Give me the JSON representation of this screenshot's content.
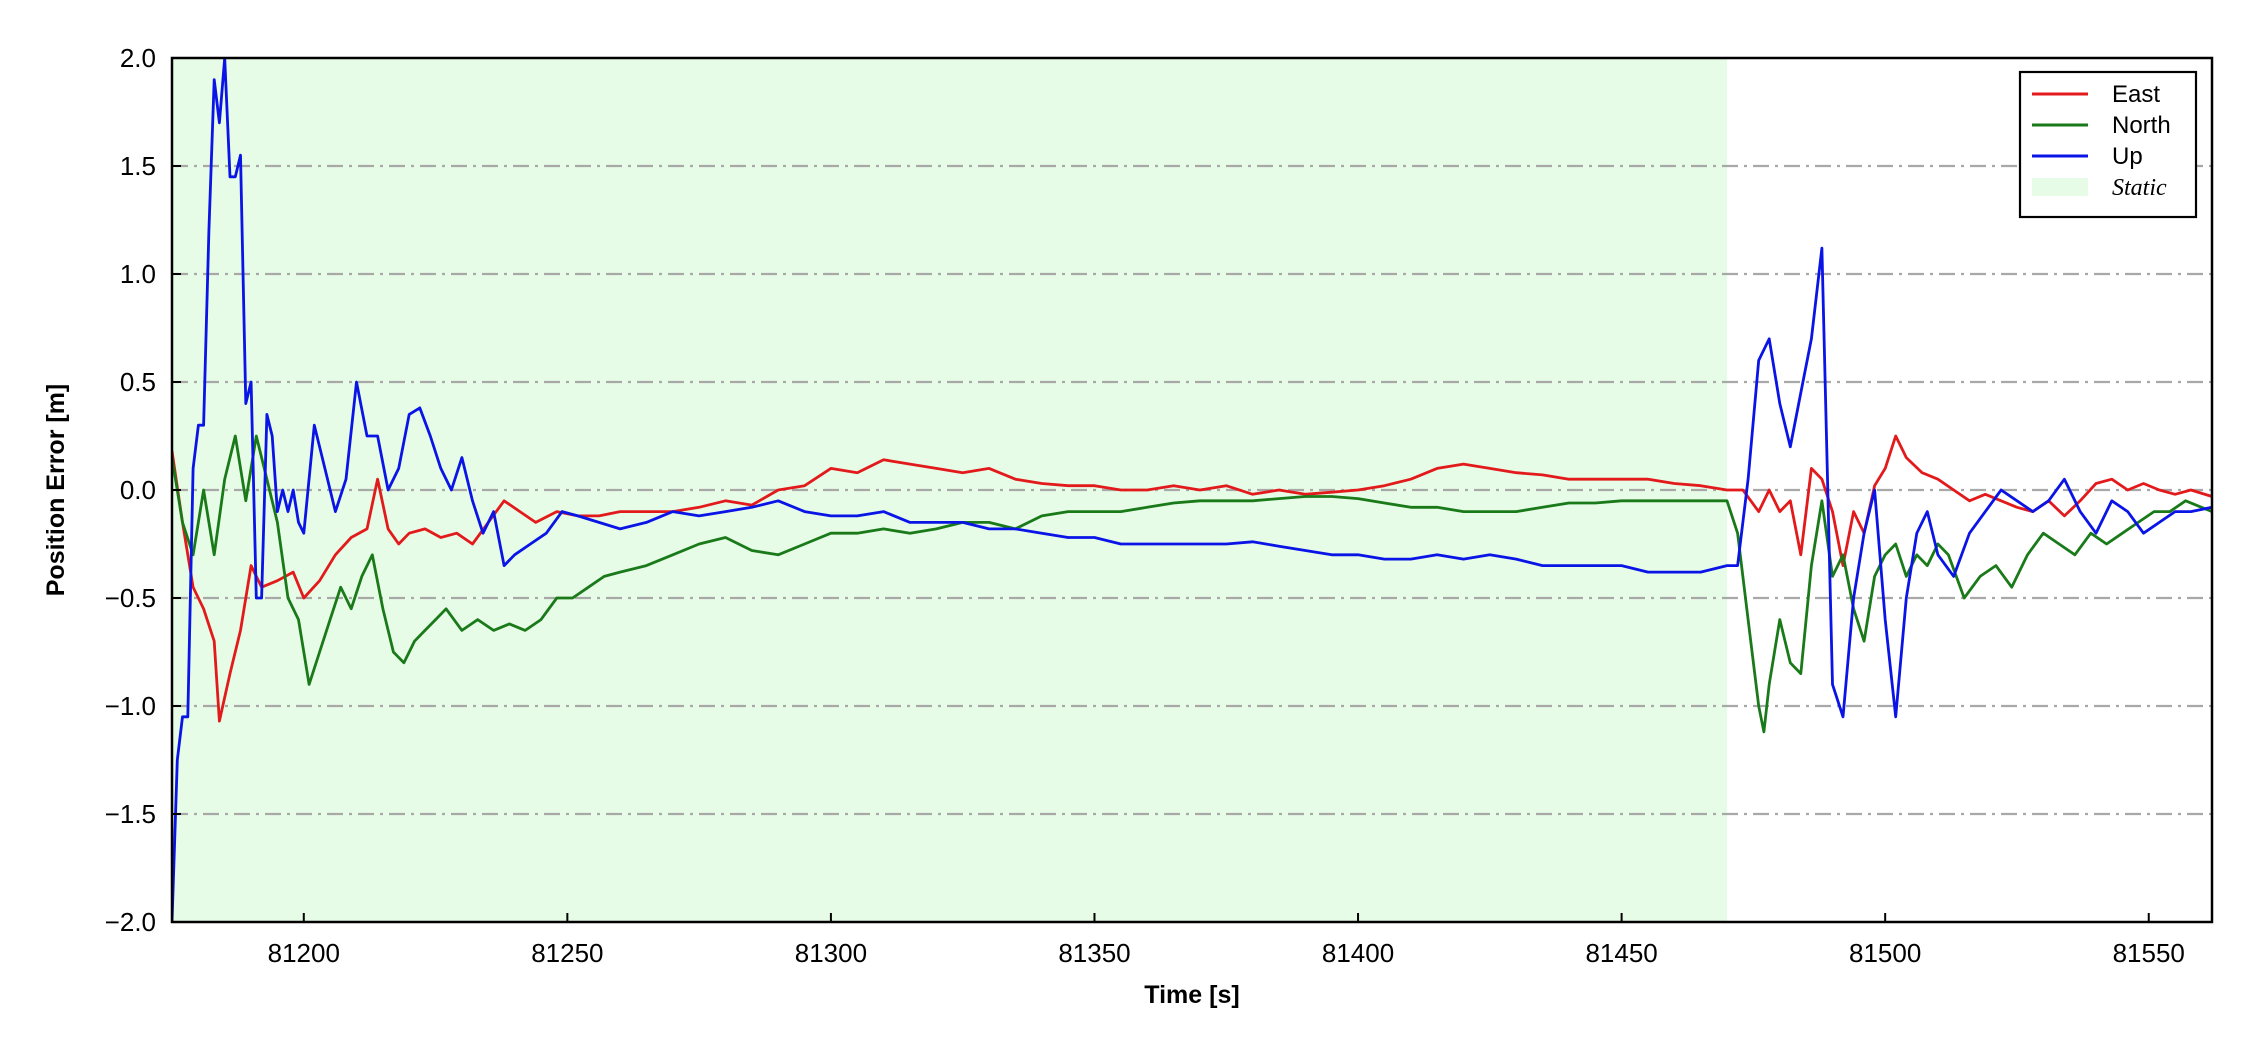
{
  "chart_data": {
    "type": "line",
    "title": "",
    "xlabel": "Time [s]",
    "ylabel": "Position Error [m]",
    "xlim": [
      81175,
      81562
    ],
    "ylim": [
      -2.0,
      2.0
    ],
    "xticks": [
      81200,
      81250,
      81300,
      81350,
      81400,
      81450,
      81500,
      81550
    ],
    "xtick_labels": [
      "81200",
      "81250",
      "81300",
      "81350",
      "81400",
      "81450",
      "81500",
      "81550"
    ],
    "yticks": [
      -2.0,
      -1.5,
      -1.0,
      -0.5,
      0.0,
      0.5,
      1.0,
      1.5,
      2.0
    ],
    "ytick_labels": [
      "−2.0",
      "−1.5",
      "−1.0",
      "−0.5",
      "0.0",
      "0.5",
      "1.0",
      "1.5",
      "2.0"
    ],
    "grid": "horizontal dash-dot",
    "legend_position": "top-right",
    "shaded_region": {
      "label": "Static",
      "x_start": 81175,
      "x_end": 81470,
      "color": "#e6fce6"
    },
    "series": [
      {
        "name": "East",
        "color": "#e31a1c",
        "x": [
          81175,
          81177,
          81179,
          81181,
          81183,
          81184,
          81186,
          81188,
          81190,
          81192,
          81195,
          81198,
          81200,
          81203,
          81206,
          81209,
          81212,
          81214,
          81216,
          81218,
          81220,
          81223,
          81226,
          81229,
          81232,
          81235,
          81238,
          81241,
          81244,
          81248,
          81252,
          81256,
          81260,
          81265,
          81270,
          81275,
          81280,
          81285,
          81290,
          81295,
          81300,
          81305,
          81310,
          81315,
          81320,
          81325,
          81330,
          81335,
          81340,
          81345,
          81350,
          81355,
          81360,
          81365,
          81370,
          81375,
          81380,
          81385,
          81390,
          81395,
          81400,
          81405,
          81410,
          81415,
          81420,
          81425,
          81430,
          81435,
          81440,
          81445,
          81450,
          81455,
          81460,
          81465,
          81470,
          81473,
          81476,
          81478,
          81480,
          81482,
          81484,
          81486,
          81488,
          81490,
          81492,
          81494,
          81496,
          81498,
          81500,
          81502,
          81504,
          81507,
          81510,
          81513,
          81516,
          81519,
          81522,
          81525,
          81528,
          81531,
          81534,
          81537,
          81540,
          81543,
          81546,
          81549,
          81552,
          81555,
          81558,
          81562
        ],
        "y": [
          0.18,
          -0.15,
          -0.45,
          -0.55,
          -0.7,
          -1.07,
          -0.85,
          -0.65,
          -0.35,
          -0.45,
          -0.42,
          -0.38,
          -0.5,
          -0.42,
          -0.3,
          -0.22,
          -0.18,
          0.05,
          -0.18,
          -0.25,
          -0.2,
          -0.18,
          -0.22,
          -0.2,
          -0.25,
          -0.15,
          -0.05,
          -0.1,
          -0.15,
          -0.1,
          -0.12,
          -0.12,
          -0.1,
          -0.1,
          -0.1,
          -0.08,
          -0.05,
          -0.07,
          0.0,
          0.02,
          0.1,
          0.08,
          0.14,
          0.12,
          0.1,
          0.08,
          0.1,
          0.05,
          0.03,
          0.02,
          0.02,
          0.0,
          0.0,
          0.02,
          0.0,
          0.02,
          -0.02,
          0.0,
          -0.02,
          -0.01,
          0.0,
          0.02,
          0.05,
          0.1,
          0.12,
          0.1,
          0.08,
          0.07,
          0.05,
          0.05,
          0.05,
          0.05,
          0.03,
          0.02,
          0.0,
          0.0,
          -0.1,
          0.0,
          -0.1,
          -0.05,
          -0.3,
          0.1,
          0.05,
          -0.1,
          -0.35,
          -0.1,
          -0.2,
          0.02,
          0.1,
          0.25,
          0.15,
          0.08,
          0.05,
          0.0,
          -0.05,
          -0.02,
          -0.05,
          -0.08,
          -0.1,
          -0.05,
          -0.12,
          -0.05,
          0.03,
          0.05,
          0.0,
          0.03,
          0.0,
          -0.02,
          0.0,
          -0.03
        ]
      },
      {
        "name": "North",
        "color": "#1a7a1a",
        "x": [
          81175,
          81177,
          81179,
          81181,
          81183,
          81185,
          81187,
          81189,
          81191,
          81193,
          81195,
          81197,
          81199,
          81201,
          81203,
          81205,
          81207,
          81209,
          81211,
          81213,
          81215,
          81217,
          81219,
          81221,
          81223,
          81225,
          81227,
          81230,
          81233,
          81236,
          81239,
          81242,
          81245,
          81248,
          81251,
          81254,
          81257,
          81260,
          81265,
          81270,
          81275,
          81280,
          81285,
          81290,
          81295,
          81300,
          81305,
          81310,
          81315,
          81320,
          81325,
          81330,
          81335,
          81340,
          81345,
          81350,
          81355,
          81360,
          81365,
          81370,
          81375,
          81380,
          81385,
          81390,
          81395,
          81400,
          81405,
          81410,
          81415,
          81420,
          81425,
          81430,
          81435,
          81440,
          81445,
          81450,
          81455,
          81460,
          81465,
          81470,
          81472,
          81474,
          81476,
          81477,
          81478,
          81480,
          81482,
          81484,
          81486,
          81488,
          81490,
          81492,
          81494,
          81496,
          81498,
          81500,
          81502,
          81504,
          81506,
          81508,
          81510,
          81512,
          81515,
          81518,
          81521,
          81524,
          81527,
          81530,
          81533,
          81536,
          81539,
          81542,
          81545,
          81548,
          81551,
          81554,
          81557,
          81562
        ],
        "y": [
          0.15,
          -0.15,
          -0.3,
          0.0,
          -0.3,
          0.05,
          0.25,
          -0.05,
          0.25,
          0.05,
          -0.15,
          -0.5,
          -0.6,
          -0.9,
          -0.75,
          -0.6,
          -0.45,
          -0.55,
          -0.4,
          -0.3,
          -0.55,
          -0.75,
          -0.8,
          -0.7,
          -0.65,
          -0.6,
          -0.55,
          -0.65,
          -0.6,
          -0.65,
          -0.62,
          -0.65,
          -0.6,
          -0.5,
          -0.5,
          -0.45,
          -0.4,
          -0.38,
          -0.35,
          -0.3,
          -0.25,
          -0.22,
          -0.28,
          -0.3,
          -0.25,
          -0.2,
          -0.2,
          -0.18,
          -0.2,
          -0.18,
          -0.15,
          -0.15,
          -0.18,
          -0.12,
          -0.1,
          -0.1,
          -0.1,
          -0.08,
          -0.06,
          -0.05,
          -0.05,
          -0.05,
          -0.04,
          -0.03,
          -0.03,
          -0.04,
          -0.06,
          -0.08,
          -0.08,
          -0.1,
          -0.1,
          -0.1,
          -0.08,
          -0.06,
          -0.06,
          -0.05,
          -0.05,
          -0.05,
          -0.05,
          -0.05,
          -0.2,
          -0.6,
          -1.0,
          -1.12,
          -0.9,
          -0.6,
          -0.8,
          -0.85,
          -0.35,
          -0.05,
          -0.4,
          -0.3,
          -0.55,
          -0.7,
          -0.4,
          -0.3,
          -0.25,
          -0.4,
          -0.3,
          -0.35,
          -0.25,
          -0.3,
          -0.5,
          -0.4,
          -0.35,
          -0.45,
          -0.3,
          -0.2,
          -0.25,
          -0.3,
          -0.2,
          -0.25,
          -0.2,
          -0.15,
          -0.1,
          -0.1,
          -0.05,
          -0.1
        ]
      },
      {
        "name": "Up",
        "color": "#0a14e6",
        "x": [
          81175,
          81176,
          81177,
          81178,
          81179,
          81180,
          81181,
          81182,
          81183,
          81184,
          81185,
          81186,
          81187,
          81188,
          81189,
          81190,
          81191,
          81192,
          81193,
          81194,
          81195,
          81196,
          81197,
          81198,
          81199,
          81200,
          81202,
          81204,
          81206,
          81208,
          81210,
          81212,
          81214,
          81216,
          81218,
          81220,
          81222,
          81224,
          81226,
          81228,
          81230,
          81232,
          81234,
          81236,
          81238,
          81240,
          81243,
          81246,
          81249,
          81252,
          81256,
          81260,
          81265,
          81270,
          81275,
          81280,
          81285,
          81290,
          81295,
          81300,
          81305,
          81310,
          81315,
          81320,
          81325,
          81330,
          81335,
          81340,
          81345,
          81350,
          81355,
          81360,
          81365,
          81370,
          81375,
          81380,
          81385,
          81390,
          81395,
          81400,
          81405,
          81410,
          81415,
          81420,
          81425,
          81430,
          81435,
          81440,
          81445,
          81450,
          81455,
          81460,
          81465,
          81470,
          81472,
          81474,
          81476,
          81478,
          81480,
          81482,
          81484,
          81486,
          81488,
          81490,
          81492,
          81494,
          81496,
          81498,
          81500,
          81502,
          81504,
          81506,
          81508,
          81510,
          81513,
          81516,
          81519,
          81522,
          81525,
          81528,
          81531,
          81534,
          81537,
          81540,
          81543,
          81546,
          81549,
          81552,
          81555,
          81558,
          81562
        ],
        "y": [
          -2.0,
          -1.25,
          -1.05,
          -1.05,
          0.1,
          0.3,
          0.3,
          1.2,
          1.9,
          1.7,
          2.0,
          1.45,
          1.45,
          1.55,
          0.4,
          0.5,
          -0.5,
          -0.5,
          0.35,
          0.25,
          -0.1,
          0.0,
          -0.1,
          0.0,
          -0.15,
          -0.2,
          0.3,
          0.1,
          -0.1,
          0.05,
          0.5,
          0.25,
          0.25,
          0.0,
          0.1,
          0.35,
          0.38,
          0.25,
          0.1,
          0.0,
          0.15,
          -0.05,
          -0.2,
          -0.1,
          -0.35,
          -0.3,
          -0.25,
          -0.2,
          -0.1,
          -0.12,
          -0.15,
          -0.18,
          -0.15,
          -0.1,
          -0.12,
          -0.1,
          -0.08,
          -0.05,
          -0.1,
          -0.12,
          -0.12,
          -0.1,
          -0.15,
          -0.15,
          -0.15,
          -0.18,
          -0.18,
          -0.2,
          -0.22,
          -0.22,
          -0.25,
          -0.25,
          -0.25,
          -0.25,
          -0.25,
          -0.24,
          -0.26,
          -0.28,
          -0.3,
          -0.3,
          -0.32,
          -0.32,
          -0.3,
          -0.32,
          -0.3,
          -0.32,
          -0.35,
          -0.35,
          -0.35,
          -0.35,
          -0.38,
          -0.38,
          -0.38,
          -0.35,
          -0.35,
          0.05,
          0.6,
          0.7,
          0.4,
          0.2,
          0.45,
          0.7,
          1.12,
          -0.9,
          -1.05,
          -0.5,
          -0.2,
          0.0,
          -0.6,
          -1.05,
          -0.5,
          -0.2,
          -0.1,
          -0.3,
          -0.4,
          -0.2,
          -0.1,
          0.0,
          -0.05,
          -0.1,
          -0.05,
          0.05,
          -0.1,
          -0.2,
          -0.05,
          -0.1,
          -0.2,
          -0.15,
          -0.1,
          -0.1,
          -0.08
        ]
      }
    ]
  }
}
